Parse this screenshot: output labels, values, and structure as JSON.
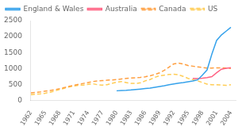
{
  "chart_data": {
    "type": "line",
    "xlim": [
      1962,
      2005
    ],
    "xticks": [
      1962,
      1965,
      1968,
      1971,
      1974,
      1977,
      1980,
      1983,
      1986,
      1989,
      1992,
      1995,
      1998,
      2001,
      2004
    ],
    "ylim": [
      0,
      2500
    ],
    "yticks": [
      0,
      500,
      1000,
      1500,
      2000,
      2500
    ],
    "grid": false,
    "legend": "upper left",
    "series": [
      {
        "name": "England & Wales",
        "line_style": "solid",
        "x": [
          1980,
          1981,
          1982,
          1983,
          1984,
          1985,
          1986,
          1987,
          1988,
          1989,
          1990,
          1991,
          1992,
          1993,
          1994,
          1995,
          1996,
          1997,
          1998,
          1999,
          2000,
          2001,
          2002,
          2003,
          2004
        ],
        "values": [
          305,
          315,
          320,
          330,
          345,
          360,
          375,
          390,
          415,
          440,
          465,
          495,
          520,
          545,
          565,
          590,
          610,
          645,
          790,
          960,
          1450,
          1880,
          2050,
          2170,
          2290
        ]
      },
      {
        "name": "Australia",
        "line_style": "solid",
        "x": [
          1996,
          1997,
          1998,
          1999,
          2000,
          2001,
          2002,
          2003,
          2004
        ],
        "values": [
          695,
          690,
          700,
          720,
          750,
          870,
          980,
          1010,
          1030
        ]
      },
      {
        "name": "Canada",
        "line_style": "dashed",
        "x": [
          1962,
          1963,
          1964,
          1965,
          1966,
          1967,
          1968,
          1969,
          1970,
          1971,
          1972,
          1973,
          1974,
          1975,
          1976,
          1977,
          1978,
          1979,
          1980,
          1981,
          1982,
          1983,
          1984,
          1985,
          1986,
          1987,
          1988,
          1989,
          1990,
          1991,
          1992,
          1993,
          1994,
          1995,
          1996,
          1997,
          1998,
          1999,
          2000,
          2001,
          2002,
          2003,
          2004
        ],
        "values": [
          240,
          255,
          270,
          295,
          315,
          340,
          370,
          405,
          445,
          475,
          505,
          535,
          565,
          595,
          615,
          625,
          635,
          645,
          655,
          675,
          695,
          705,
          715,
          725,
          745,
          775,
          815,
          865,
          945,
          1045,
          1145,
          1170,
          1145,
          1095,
          1075,
          1055,
          1035,
          1015,
          1015,
          1025,
          1025,
          1015,
          1005
        ]
      },
      {
        "name": "US",
        "line_style": "dashed",
        "x": [
          1962,
          1963,
          1964,
          1965,
          1966,
          1967,
          1968,
          1969,
          1970,
          1971,
          1972,
          1973,
          1974,
          1975,
          1976,
          1977,
          1978,
          1979,
          1980,
          1981,
          1982,
          1983,
          1984,
          1985,
          1986,
          1987,
          1988,
          1989,
          1990,
          1991,
          1992,
          1993,
          1994,
          1995,
          1996,
          1997,
          1998,
          1999,
          2000,
          2001,
          2002,
          2003,
          2004
        ],
        "values": [
          185,
          195,
          210,
          230,
          260,
          300,
          345,
          385,
          425,
          455,
          475,
          485,
          505,
          525,
          495,
          485,
          495,
          535,
          575,
          595,
          565,
          535,
          535,
          555,
          615,
          655,
          725,
          775,
          795,
          815,
          825,
          805,
          755,
          695,
          655,
          615,
          565,
          515,
          495,
          495,
          485,
          475,
          495
        ]
      }
    ]
  }
}
